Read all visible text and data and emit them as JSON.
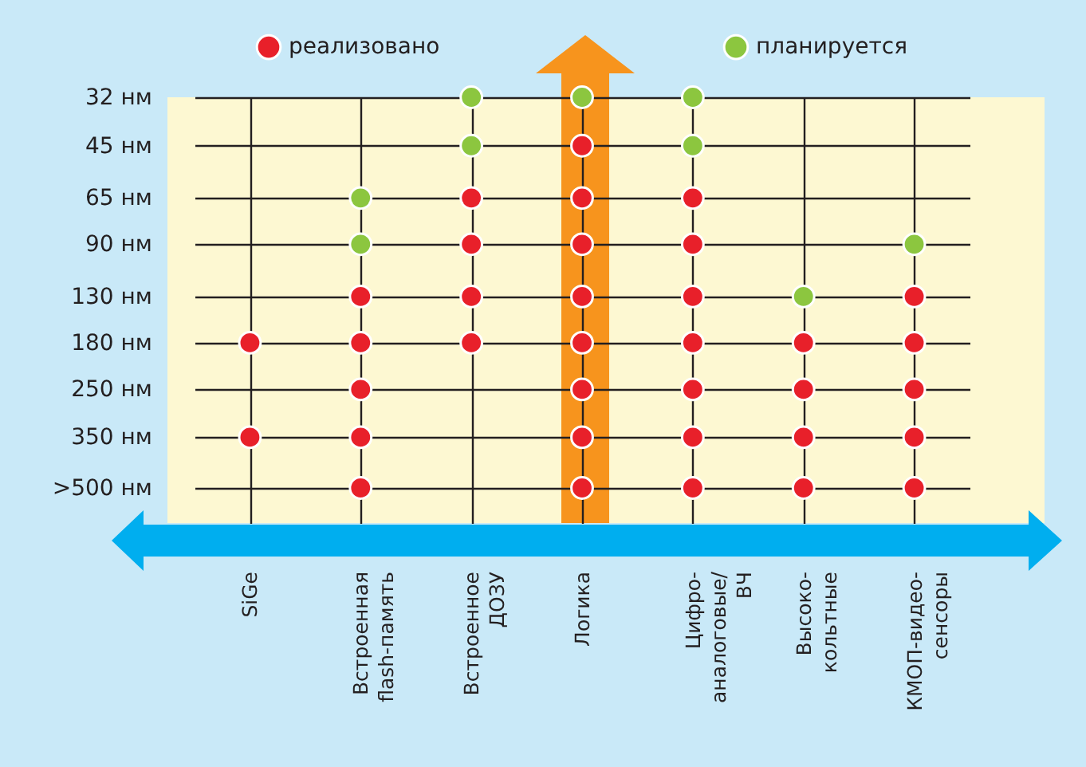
{
  "chart_data": {
    "type": "scatter",
    "categories": [
      "SiGe",
      "Встроенная\nflash-память",
      "Встроенное\nДОЗУ",
      "Логика",
      "Цифро-\nаналоговые/\nВЧ",
      "Высоко-\nкольтные",
      "КМОП-видео-\nсенсоры"
    ],
    "log": "y",
    "ylim": [
      640,
      32
    ],
    "yticks": [
      {
        "value": 500,
        "label": ">500 нм"
      },
      {
        "value": 350,
        "label": "350 нм"
      },
      {
        "value": 250,
        "label": "250 нм"
      },
      {
        "value": 180,
        "label": "180 нм"
      },
      {
        "value": 130,
        "label": "130 нм"
      },
      {
        "value": 90,
        "label": "90 нм"
      },
      {
        "value": 65,
        "label": "65 нм"
      },
      {
        "value": 45,
        "label": "45 нм"
      },
      {
        "value": 32,
        "label": "32 нм"
      }
    ],
    "grid": true,
    "legend": "top",
    "marker": "circle",
    "series": [
      {
        "name": "реализовано",
        "color": "#e8202a",
        "x": [
          "SiGe",
          "SiGe",
          "Встроенная\nflash-память",
          "Встроенная\nflash-память",
          "Встроенная\nflash-память",
          "Встроенная\nflash-память",
          "Встроенная\nflash-память",
          "Встроенное\nДОЗУ",
          "Встроенное\nДОЗУ",
          "Встроенное\nДОЗУ",
          "Встроенное\nДОЗУ",
          "Логика",
          "Логика",
          "Логика",
          "Логика",
          "Логика",
          "Логика",
          "Логика",
          "Логика",
          "Цифро-\nаналоговые/\nВЧ",
          "Цифро-\nаналоговые/\nВЧ",
          "Цифро-\nаналоговые/\nВЧ",
          "Цифро-\nаналоговые/\nВЧ",
          "Цифро-\nаналоговые/\nВЧ",
          "Цифро-\nаналоговые/\nВЧ",
          "Цифро-\nаналоговые/\nВЧ",
          "Высоко-\nкольтные",
          "Высоко-\nкольтные",
          "Высоко-\nкольтные",
          "Высоко-\nкольтные",
          "КМОП-видео-\nсенсоры",
          "КМОП-видео-\nсенсоры",
          "КМОП-видео-\nсенсоры",
          "КМОП-видео-\nсенсоры",
          "КМОП-видео-\nсенсоры"
        ],
        "values": [
          350,
          180,
          500,
          350,
          250,
          180,
          130,
          180,
          130,
          90,
          65,
          500,
          350,
          250,
          180,
          130,
          90,
          65,
          45,
          500,
          350,
          250,
          180,
          130,
          90,
          65,
          500,
          350,
          250,
          180,
          500,
          350,
          250,
          180,
          130
        ]
      },
      {
        "name": "планируется",
        "color": "#8cc63f",
        "x": [
          "Встроенная\nflash-память",
          "Встроенная\nflash-память",
          "Встроенное\nДОЗУ",
          "Встроенное\nДОЗУ",
          "Логика",
          "Цифро-\nаналоговые/\nВЧ",
          "Цифро-\nаналоговые/\nВЧ",
          "Высоко-\nкольтные",
          "КМОП-видео-\nсенсоры"
        ],
        "values": [
          90,
          65,
          45,
          32,
          32,
          45,
          32,
          130,
          90
        ]
      }
    ]
  }
}
